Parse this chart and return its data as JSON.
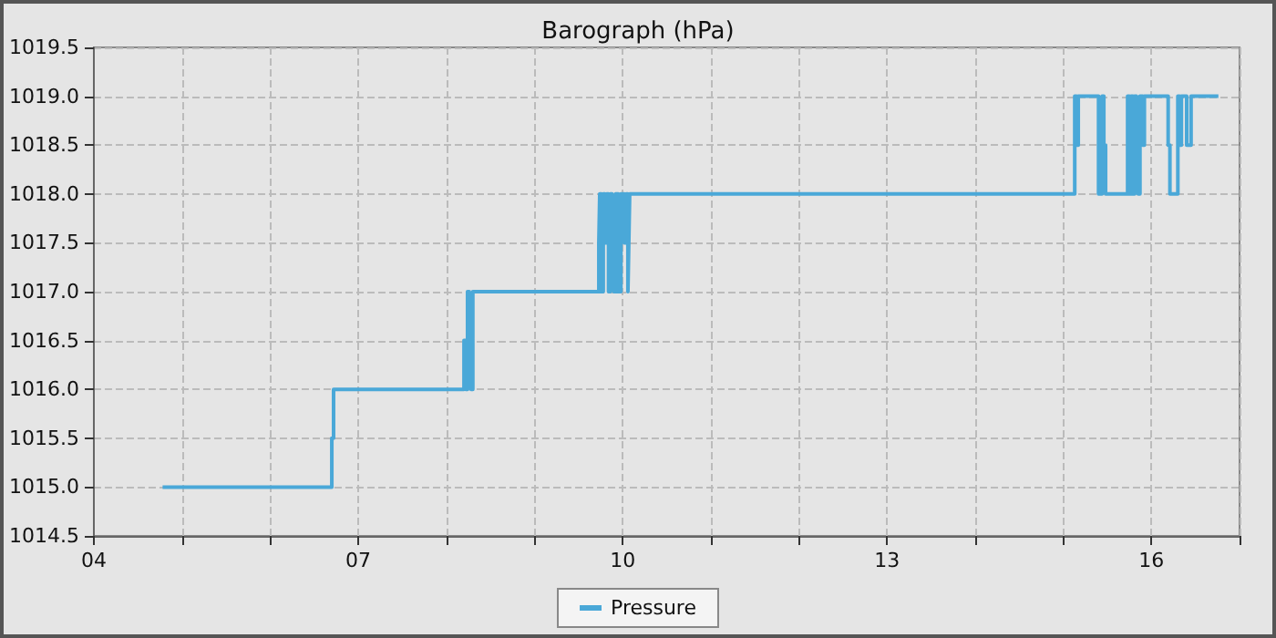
{
  "chart_data": {
    "type": "step",
    "title": "Barograph (hPa)",
    "legend": "bottom",
    "grid": true,
    "line_style": "solid",
    "marker": "none",
    "xlim": [
      4,
      17
    ],
    "xticks": [
      {
        "value": 4,
        "label": "04"
      },
      {
        "value": 5,
        "label": null
      },
      {
        "value": 6,
        "label": null
      },
      {
        "value": 7,
        "label": "07"
      },
      {
        "value": 8,
        "label": null
      },
      {
        "value": 9,
        "label": null
      },
      {
        "value": 10,
        "label": "10"
      },
      {
        "value": 11,
        "label": null
      },
      {
        "value": 12,
        "label": null
      },
      {
        "value": 13,
        "label": "13"
      },
      {
        "value": 14,
        "label": null
      },
      {
        "value": 15,
        "label": null
      },
      {
        "value": 16,
        "label": "16"
      },
      {
        "value": 17,
        "label": null
      }
    ],
    "ylim": [
      1014.5,
      1019.5
    ],
    "yticks": [
      {
        "value": 1014.5,
        "label": "1014.5"
      },
      {
        "value": 1015,
        "label": "1015.0"
      },
      {
        "value": 1015.5,
        "label": "1015.5"
      },
      {
        "value": 1016,
        "label": "1016.0"
      },
      {
        "value": 1016.5,
        "label": "1016.5"
      },
      {
        "value": 1017,
        "label": "1017.0"
      },
      {
        "value": 1017.5,
        "label": "1017.5"
      },
      {
        "value": 1018,
        "label": "1018.0"
      },
      {
        "value": 1018.5,
        "label": "1018.5"
      },
      {
        "value": 1019,
        "label": "1019.0"
      },
      {
        "value": 1019.5,
        "label": "1019.5"
      }
    ],
    "series": [
      {
        "name": "Pressure",
        "color": "#4aa8d8",
        "x": [
          4.78,
          6.7,
          6.72,
          8.2,
          8.22,
          8.24,
          8.26,
          8.28,
          8.3,
          9.73,
          9.74,
          9.76,
          9.78,
          9.8,
          9.82,
          9.84,
          9.86,
          9.88,
          9.9,
          9.92,
          9.95,
          9.98,
          10.02,
          10.04,
          10.06,
          10.07,
          10.08,
          15.13,
          15.15,
          15.17,
          15.4,
          15.44,
          15.46,
          15.48,
          15.73,
          15.75,
          15.77,
          15.79,
          15.81,
          15.83,
          15.85,
          15.87,
          15.9,
          15.92,
          16.19,
          16.21,
          16.3,
          16.32,
          16.34,
          16.4,
          16.45,
          16.76
        ],
        "values": [
          1015,
          1015.5,
          1016,
          1016.5,
          1016,
          1017,
          1016.5,
          1016,
          1017,
          1017.5,
          1018,
          1017,
          1018,
          1017.5,
          1018,
          1017,
          1018,
          1017.5,
          1017,
          1018,
          1017,
          1018,
          1017.5,
          1018,
          1017,
          1017.5,
          1018,
          1019,
          1018.5,
          1019,
          1018,
          1019,
          1018.5,
          1018,
          1019,
          1018,
          1019,
          1018,
          1019,
          1018.5,
          1018,
          1019,
          1018.5,
          1019,
          1018.5,
          1018,
          1019,
          1018.5,
          1019,
          1018.5,
          1019,
          1019
        ]
      }
    ]
  }
}
